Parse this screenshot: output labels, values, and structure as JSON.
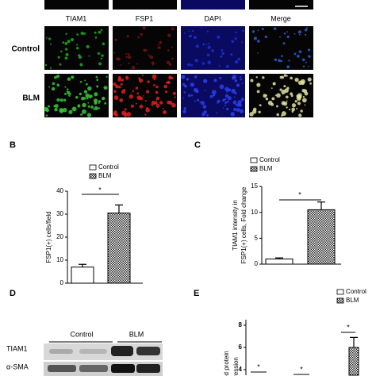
{
  "panel_a": {
    "columns": [
      "TIAM1",
      "FSP1",
      "DAPI",
      "Merge"
    ],
    "rows": [
      "Control",
      "BLM"
    ]
  },
  "chart_data": [
    {
      "type": "bar",
      "panel_label": "B",
      "ylabel": [
        "FSP1(+) cells/field"
      ],
      "series": [
        {
          "name": "Control",
          "color": "#ffffff",
          "values": [
            7
          ],
          "errors": [
            1.2
          ]
        },
        {
          "name": "BLM",
          "color": "#333333",
          "values": [
            30.5
          ],
          "errors": [
            3.5
          ]
        }
      ],
      "ylim": [
        0,
        40
      ],
      "yticks": [
        0,
        10,
        20,
        30,
        40
      ],
      "annotations": [
        "*"
      ]
    },
    {
      "type": "bar",
      "panel_label": "C",
      "ylabel": [
        "TIAM1 intensity in",
        "FSP1(+) cells, Fold change"
      ],
      "series": [
        {
          "name": "Control",
          "color": "#ffffff",
          "values": [
            1
          ],
          "errors": [
            0.2
          ]
        },
        {
          "name": "BLM",
          "color": "#333333",
          "values": [
            10.5
          ],
          "errors": [
            1.5
          ]
        }
      ],
      "ylim": [
        0,
        15
      ],
      "yticks": [
        0,
        5,
        10,
        15
      ],
      "annotations": [
        "*"
      ]
    },
    {
      "type": "bar",
      "panel_label": "E",
      "ylabel": [
        "ized protein",
        "ression"
      ],
      "series": [
        {
          "name": "Control",
          "color": "#ffffff",
          "values": [
            null
          ],
          "errors": [
            null
          ]
        },
        {
          "name": "BLM",
          "color": "#333333",
          "values": [
            6
          ],
          "errors": [
            0.9
          ]
        }
      ],
      "ylim": [
        3.5,
        8.5
      ],
      "yticks": [
        4,
        6,
        8
      ],
      "annotations": [
        "*",
        "*",
        "*"
      ]
    }
  ],
  "panel_d": {
    "label": "D",
    "groups": [
      "Control",
      "BLM"
    ],
    "rows": [
      "TIAM1",
      "α-SMA"
    ]
  }
}
